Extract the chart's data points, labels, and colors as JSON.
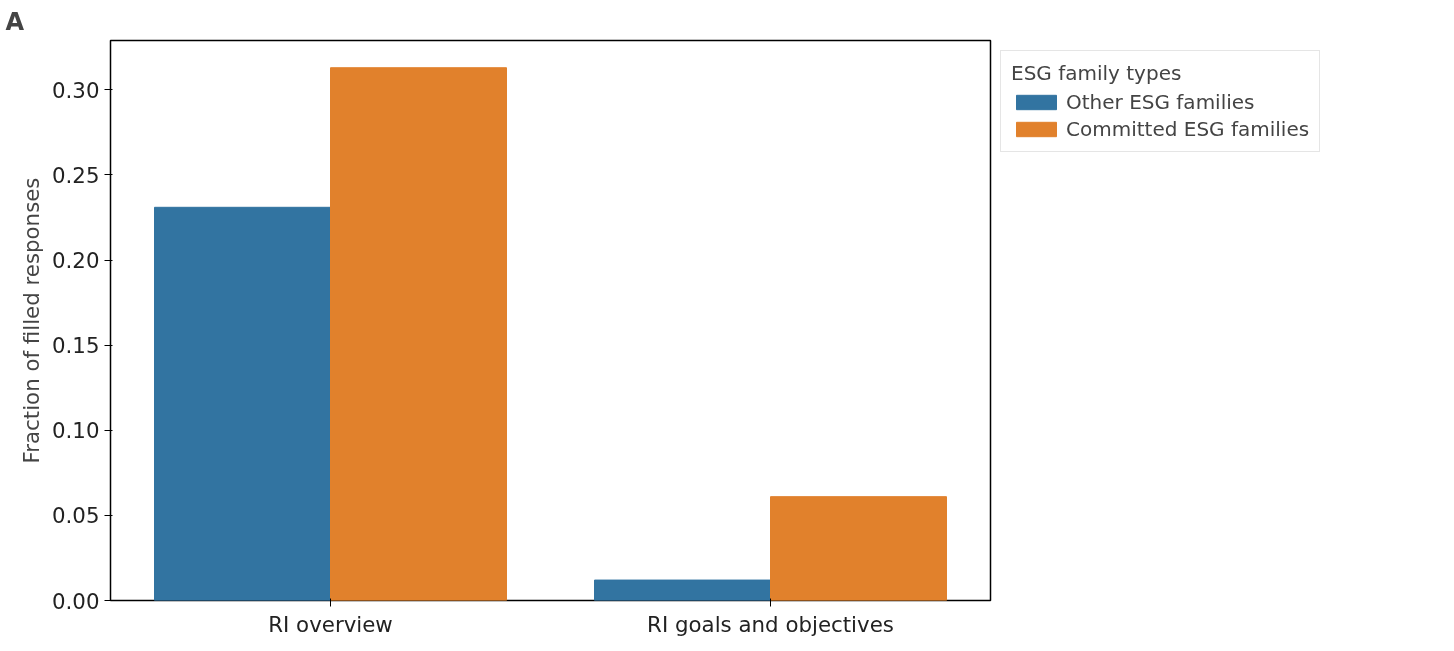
{
  "chart_data": {
    "type": "bar",
    "categories": [
      "RI overview",
      "RI goals and objectives"
    ],
    "ylabel": "Fraction of filled responses",
    "legend_title": "ESG family types",
    "legend": "right",
    "grid": false,
    "series": [
      {
        "name": "Other ESG families",
        "color": "#3274a1",
        "values": [
          0.231,
          0.012
        ]
      },
      {
        "name": "Committed ESG families",
        "color": "#e1812c",
        "values": [
          0.313,
          0.061
        ]
      }
    ],
    "ylim": [
      0,
      0.329
    ],
    "yticks": [
      {
        "value": 0,
        "label": "0.00"
      },
      0.05,
      {
        "value": 0.1,
        "label": "0.10"
      },
      0.15,
      {
        "value": 0.2,
        "label": "0.20"
      },
      0.25,
      {
        "value": 0.3,
        "label": "0.30"
      }
    ],
    "annotations": [
      "A"
    ]
  }
}
